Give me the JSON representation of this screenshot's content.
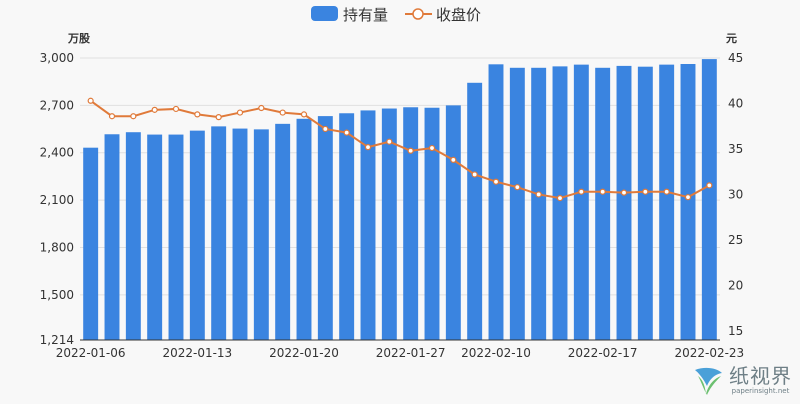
{
  "chart_data": {
    "type": "bar+line",
    "legend": {
      "placement": "top-center",
      "items": [
        {
          "name": "持有量",
          "color": "#3a84e0",
          "marker": "bar"
        },
        {
          "name": "收盘价",
          "color": "#e07a3a",
          "marker": "line-circle"
        }
      ]
    },
    "left_axis": {
      "unit": "万股",
      "ticks": [
        "1,214",
        "1,500",
        "1,800",
        "2,100",
        "2,400",
        "2,700",
        "3,000"
      ],
      "range": [
        1214,
        3000
      ]
    },
    "right_axis": {
      "unit": "元",
      "ticks": [
        "15",
        "20",
        "25",
        "30",
        "35",
        "40",
        "45"
      ],
      "range": [
        14,
        45
      ]
    },
    "x_axis_labels": [
      "2022-01-06",
      "2022-01-13",
      "2022-01-20",
      "2022-01-27",
      "2022-02-10",
      "2022-02-17",
      "2022-02-23"
    ],
    "grid": true,
    "series": [
      {
        "name": "持有量",
        "type": "bar",
        "axis": "left",
        "values": [
          2432,
          2517,
          2530,
          2515,
          2515,
          2540,
          2567,
          2553,
          2548,
          2583,
          2615,
          2632,
          2650,
          2668,
          2680,
          2688,
          2685,
          2700,
          2843,
          2960,
          2938,
          2938,
          2947,
          2958,
          2938,
          2950,
          2945,
          2958,
          2962,
          2993
        ]
      },
      {
        "name": "收盘价",
        "type": "line",
        "axis": "right",
        "values": [
          40.3,
          38.6,
          38.6,
          39.3,
          39.4,
          38.8,
          38.5,
          39.0,
          39.5,
          39.0,
          38.8,
          37.2,
          36.8,
          35.2,
          35.8,
          34.8,
          35.1,
          33.8,
          32.2,
          31.4,
          30.8,
          30.0,
          29.6,
          30.3,
          30.3,
          30.2,
          30.3,
          30.3,
          29.7,
          31.0
        ]
      }
    ]
  },
  "watermark": {
    "title": "纸视界",
    "url": "paperinsight.net"
  }
}
